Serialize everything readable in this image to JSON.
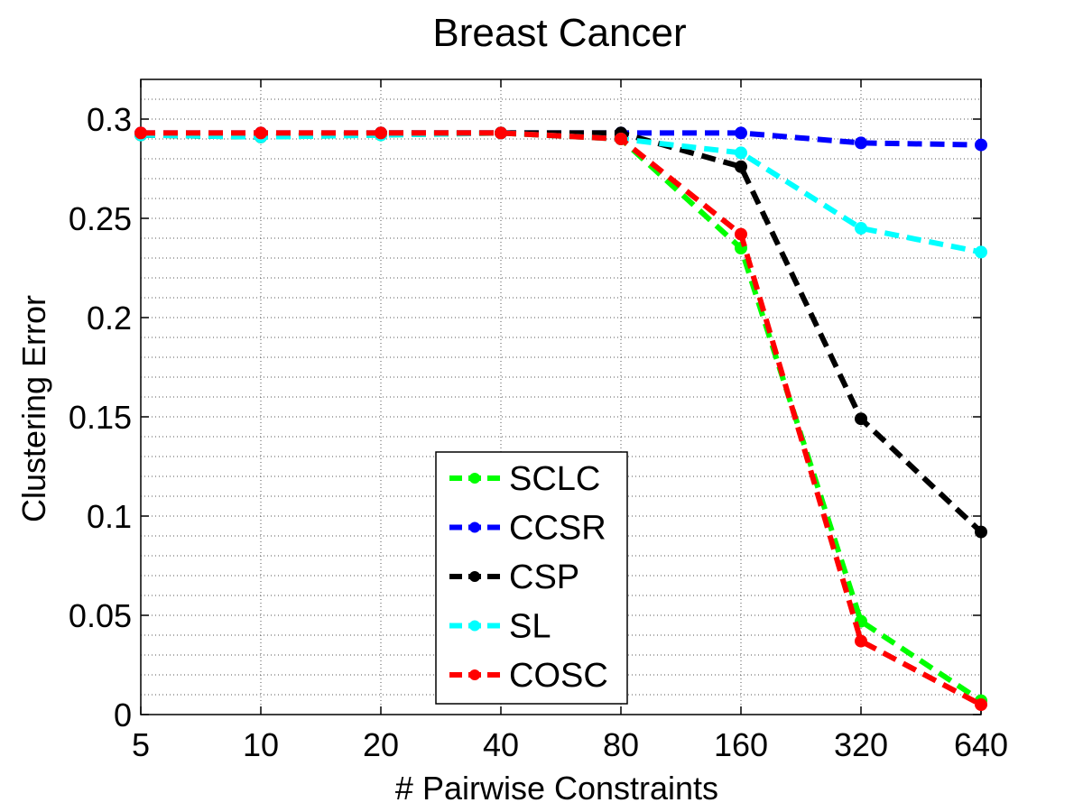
{
  "chart_data": {
    "type": "line",
    "title": "Breast Cancer",
    "xlabel": "# Pairwise Constraints",
    "ylabel": "Clustering Error",
    "categories": [
      "5",
      "10",
      "20",
      "40",
      "80",
      "160",
      "320",
      "640"
    ],
    "ylim": [
      0,
      0.32
    ],
    "yticks": [
      0,
      0.05,
      0.1,
      0.15,
      0.2,
      0.25,
      0.3
    ],
    "ytick_labels": [
      "0",
      "0.05",
      "0.1",
      "0.15",
      "0.2",
      "0.25",
      "0.3"
    ],
    "grid": true,
    "legend_position": "bottom-center",
    "series": [
      {
        "name": "SCLC",
        "color": "#00ff00",
        "values": [
          0.292,
          0.291,
          0.292,
          0.293,
          0.29,
          0.235,
          0.047,
          0.007
        ]
      },
      {
        "name": "CCSR",
        "color": "#0000ff",
        "values": [
          0.293,
          0.293,
          0.293,
          0.293,
          0.293,
          0.293,
          0.288,
          0.287
        ]
      },
      {
        "name": "CSP",
        "color": "#000000",
        "values": [
          0.292,
          0.291,
          0.293,
          0.293,
          0.293,
          0.276,
          0.149,
          0.092
        ]
      },
      {
        "name": "SL",
        "color": "#00ffff",
        "values": [
          0.292,
          0.291,
          0.292,
          0.293,
          0.29,
          0.283,
          0.245,
          0.233
        ]
      },
      {
        "name": "COSC",
        "color": "#ff0000",
        "values": [
          0.293,
          0.293,
          0.293,
          0.293,
          0.29,
          0.242,
          0.037,
          0.005
        ]
      }
    ]
  }
}
